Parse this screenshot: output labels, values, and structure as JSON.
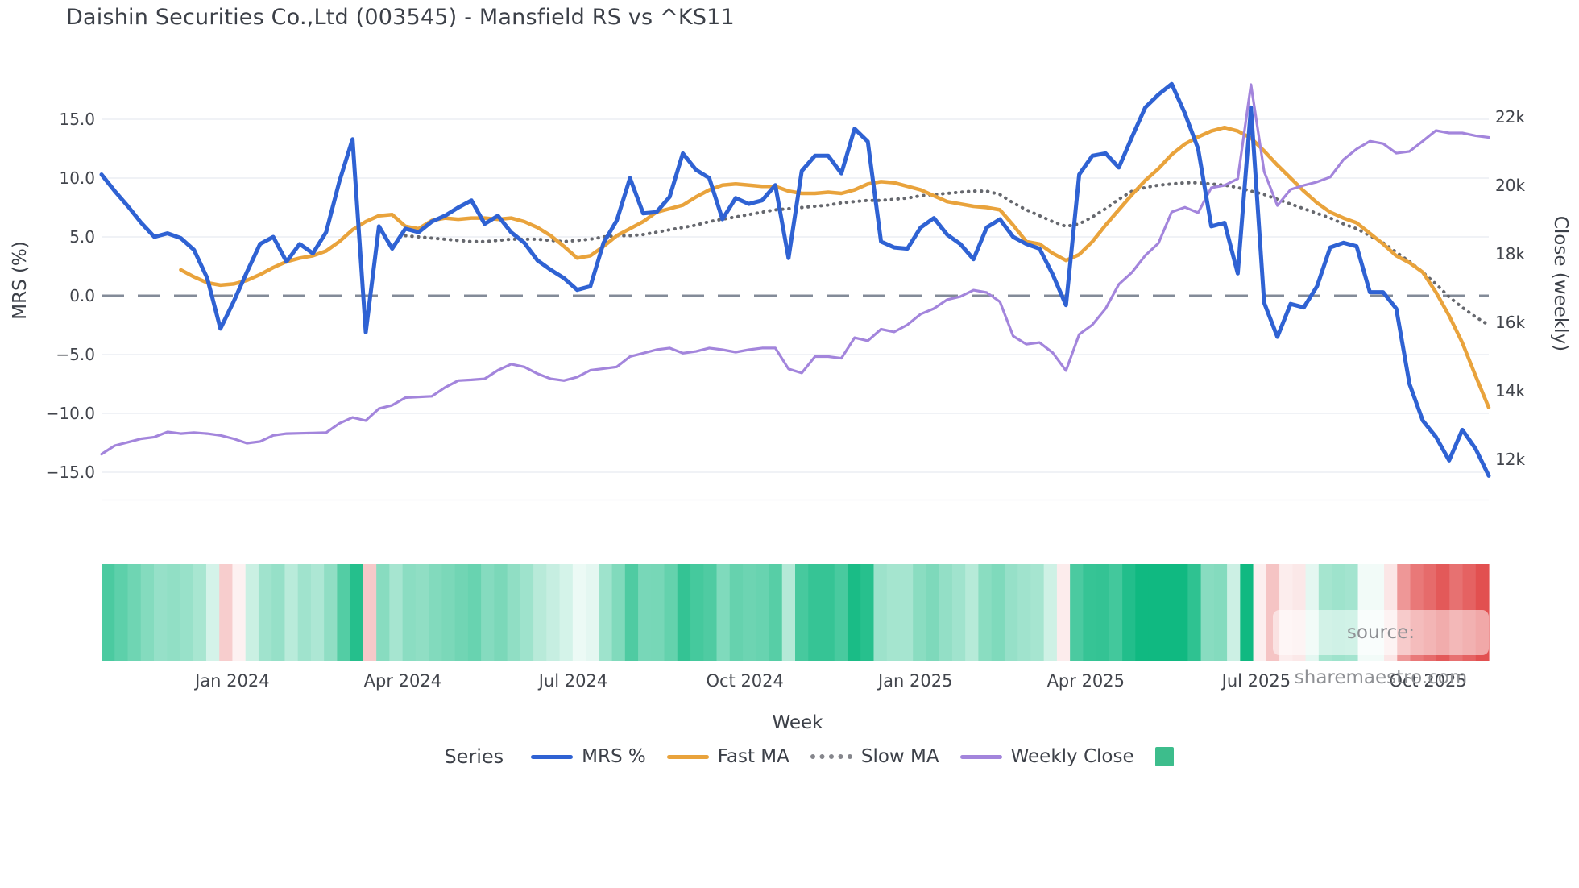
{
  "title": "Daishin Securities Co.,Ltd (003545) - Mansfield RS vs ^KS11",
  "source_note": "source: sharemaestro.com",
  "colors": {
    "mrs": "#2f62d3",
    "fast_ma": "#e9a33c",
    "slow_ma": "#66686e",
    "weekly_close": "#a385dc",
    "zero_line": "#6e7787",
    "gridline": "#ecedf3",
    "heatmap_positive": "#10b981",
    "heatmap_negative": "#e25050",
    "legend_square": "#3dbd8c"
  },
  "axes": {
    "left": {
      "title": "MRS (%)",
      "ticks": [
        {
          "label": "15.0",
          "value": 15
        },
        {
          "label": "10.0",
          "value": 10
        },
        {
          "label": "5.0",
          "value": 5
        },
        {
          "label": "0.0",
          "value": 0
        },
        {
          "label": "−5.0",
          "value": -5
        },
        {
          "label": "−10.0",
          "value": -10
        },
        {
          "label": "−15.0",
          "value": -15
        }
      ]
    },
    "right": {
      "title": "Close (weekly)",
      "ticks": [
        {
          "label": "22k",
          "value": 22000
        },
        {
          "label": "20k",
          "value": 20000
        },
        {
          "label": "18k",
          "value": 18000
        },
        {
          "label": "16k",
          "value": 16000
        },
        {
          "label": "14k",
          "value": 14000
        },
        {
          "label": "12k",
          "value": 12000
        }
      ]
    },
    "x": {
      "title": "Week",
      "ticks": [
        {
          "label": "Jan 2024",
          "week": 9.9
        },
        {
          "label": "Apr 2024",
          "week": 22.8
        },
        {
          "label": "Jul 2024",
          "week": 35.7
        },
        {
          "label": "Oct 2024",
          "week": 48.7
        },
        {
          "label": "Jan 2025",
          "week": 61.6
        },
        {
          "label": "Apr 2025",
          "week": 74.5
        },
        {
          "label": "Jul 2025",
          "week": 87.4
        },
        {
          "label": "Oct 2025",
          "week": 100.4
        }
      ]
    }
  },
  "legend": {
    "title": "Series",
    "items": [
      {
        "label": "MRS %",
        "swatch": "line",
        "color": "#2f62d3"
      },
      {
        "label": "Fast MA",
        "swatch": "line",
        "color": "#e9a33c"
      },
      {
        "label": "Slow MA",
        "swatch": "dotted",
        "color": "#85868c"
      },
      {
        "label": "Weekly Close",
        "swatch": "line",
        "color": "#a385dc"
      },
      {
        "label": "",
        "swatch": "square",
        "color": "#3dbd8c"
      }
    ]
  },
  "chart_data": {
    "type": "line",
    "x_unit": "week_index",
    "n_weeks": 106,
    "left_axis_range": [
      -17.3,
      20.0
    ],
    "right_axis_range": [
      10800,
      23700
    ],
    "grid": true,
    "zero_reference_line": 0,
    "series": [
      {
        "name": "MRS %",
        "axis": "left",
        "style": "solid",
        "values": [
          10.3,
          8.9,
          7.6,
          6.2,
          5.0,
          5.3,
          4.9,
          3.9,
          1.5,
          -2.8,
          -0.5,
          2.0,
          4.4,
          5.0,
          2.9,
          4.4,
          3.6,
          5.4,
          9.7,
          13.3,
          -3.1,
          5.9,
          4.0,
          5.7,
          5.4,
          6.3,
          6.8,
          7.5,
          8.1,
          6.1,
          6.8,
          5.4,
          4.5,
          3.0,
          2.2,
          1.5,
          0.5,
          0.8,
          4.5,
          6.4,
          10.0,
          7.0,
          7.1,
          8.4,
          12.1,
          10.7,
          10.0,
          6.5,
          8.3,
          7.8,
          8.1,
          9.4,
          3.2,
          10.6,
          11.9,
          11.9,
          10.4,
          14.2,
          13.1,
          4.6,
          4.1,
          4.0,
          5.8,
          6.6,
          5.2,
          4.4,
          3.1,
          5.8,
          6.5,
          5.0,
          4.4,
          4.0,
          1.8,
          -0.8,
          10.3,
          11.9,
          12.1,
          10.9,
          13.5,
          16.0,
          17.1,
          18.0,
          15.5,
          12.5,
          5.9,
          6.2,
          1.9,
          16.0,
          -0.6,
          -3.5,
          -0.7,
          -1.0,
          0.8,
          4.1,
          4.5,
          4.2,
          0.3,
          0.3,
          -1.1,
          -7.5,
          -10.6,
          -12.0,
          -14.0,
          -11.4,
          -13.0,
          -15.3
        ]
      },
      {
        "name": "Fast MA",
        "axis": "left",
        "style": "solid",
        "values": [
          null,
          null,
          null,
          null,
          null,
          null,
          2.2,
          1.6,
          1.1,
          0.9,
          1.0,
          1.3,
          1.8,
          2.4,
          2.9,
          3.2,
          3.4,
          3.8,
          4.6,
          5.6,
          6.3,
          6.8,
          6.9,
          5.9,
          5.7,
          6.4,
          6.6,
          6.5,
          6.6,
          6.6,
          6.5,
          6.6,
          6.3,
          5.8,
          5.1,
          4.2,
          3.2,
          3.4,
          4.2,
          5.1,
          5.7,
          6.3,
          7.1,
          7.4,
          7.7,
          8.4,
          9.0,
          9.4,
          9.5,
          9.4,
          9.3,
          9.3,
          8.9,
          8.7,
          8.7,
          8.8,
          8.7,
          9.0,
          9.5,
          9.7,
          9.6,
          9.3,
          9.0,
          8.5,
          8.0,
          7.8,
          7.6,
          7.5,
          7.3,
          6.0,
          4.6,
          4.4,
          3.6,
          3.0,
          3.5,
          4.6,
          6.0,
          7.3,
          8.6,
          9.8,
          10.8,
          12.0,
          12.9,
          13.5,
          14.0,
          14.3,
          14.0,
          13.4,
          12.3,
          11.1,
          10.0,
          8.9,
          7.9,
          7.1,
          6.6,
          6.2,
          5.3,
          4.4,
          3.4,
          2.8,
          2.0,
          0.3,
          -1.7,
          -4.0,
          -6.8,
          -9.5
        ]
      },
      {
        "name": "Slow MA",
        "axis": "left",
        "style": "dotted",
        "values": [
          null,
          null,
          null,
          null,
          null,
          null,
          null,
          null,
          null,
          null,
          null,
          null,
          null,
          null,
          null,
          null,
          null,
          null,
          null,
          null,
          null,
          null,
          null,
          5.1,
          5.0,
          4.9,
          4.8,
          4.7,
          4.6,
          4.6,
          4.7,
          4.8,
          4.8,
          4.8,
          4.7,
          4.6,
          4.7,
          4.8,
          5.0,
          5.1,
          5.1,
          5.2,
          5.4,
          5.6,
          5.8,
          6.0,
          6.3,
          6.5,
          6.7,
          6.9,
          7.1,
          7.3,
          7.4,
          7.5,
          7.6,
          7.7,
          7.9,
          8.0,
          8.1,
          8.1,
          8.2,
          8.3,
          8.5,
          8.6,
          8.7,
          8.8,
          8.9,
          8.9,
          8.6,
          7.9,
          7.3,
          6.8,
          6.3,
          5.9,
          6.1,
          6.7,
          7.4,
          8.2,
          8.9,
          9.2,
          9.4,
          9.5,
          9.6,
          9.6,
          9.5,
          9.4,
          9.2,
          8.9,
          8.6,
          8.2,
          7.8,
          7.4,
          7.0,
          6.6,
          6.1,
          5.7,
          5.1,
          4.5,
          3.7,
          2.9,
          2.0,
          1.0,
          -0.1,
          -1.0,
          -1.8,
          -2.5
        ]
      },
      {
        "name": "Weekly Close",
        "axis": "right",
        "style": "solid",
        "values": [
          12150,
          12400,
          12500,
          12600,
          12650,
          12800,
          12750,
          12780,
          12750,
          12700,
          12600,
          12470,
          12520,
          12700,
          12750,
          12760,
          12770,
          12780,
          13050,
          13220,
          13130,
          13480,
          13580,
          13800,
          13820,
          13840,
          14100,
          14300,
          14320,
          14350,
          14600,
          14780,
          14700,
          14500,
          14350,
          14300,
          14400,
          14600,
          14650,
          14700,
          15000,
          15100,
          15200,
          15250,
          15100,
          15150,
          15250,
          15200,
          15130,
          15200,
          15250,
          15250,
          14640,
          14520,
          15000,
          15000,
          14950,
          15550,
          15460,
          15800,
          15720,
          15930,
          16240,
          16400,
          16660,
          16750,
          16940,
          16870,
          16600,
          15600,
          15360,
          15410,
          15110,
          14590,
          15650,
          15930,
          16400,
          17110,
          17460,
          17950,
          18310,
          19220,
          19360,
          19200,
          19930,
          20000,
          20190,
          22940,
          20400,
          19410,
          19880,
          20000,
          20100,
          20240,
          20750,
          21060,
          21290,
          21220,
          20940,
          20990,
          21290,
          21600,
          21530,
          21530,
          21450,
          21400
        ]
      }
    ],
    "heatmap": {
      "basis": "MRS %",
      "scale_max": 15,
      "positive_color": "#10b981",
      "negative_color": "#e25050"
    }
  }
}
